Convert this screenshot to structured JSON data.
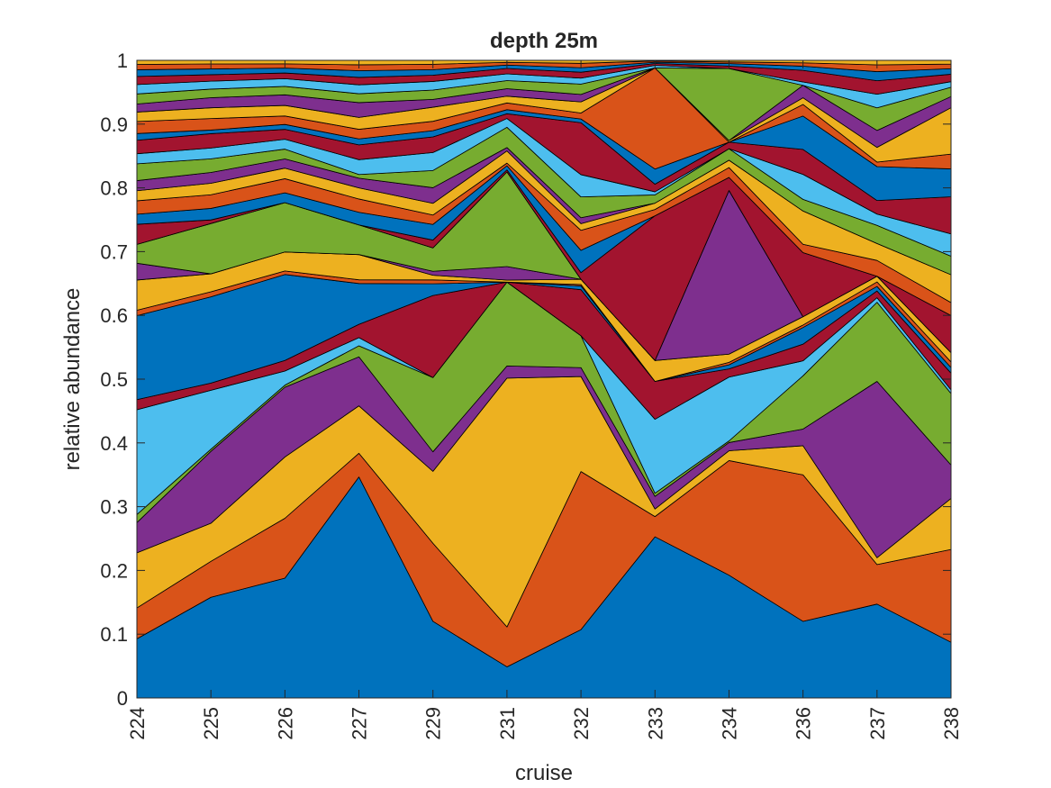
{
  "chart_data": {
    "type": "area",
    "title": "depth 25m",
    "xlabel": "cruise",
    "ylabel": "relative abundance",
    "ylim": [
      0,
      1
    ],
    "yticks": [
      "0",
      "0.1",
      "0.2",
      "0.3",
      "0.4",
      "0.5",
      "0.6",
      "0.7",
      "0.8",
      "0.9",
      "1"
    ],
    "categories": [
      "224",
      "225",
      "226",
      "227",
      "229",
      "231",
      "232",
      "233",
      "234",
      "236",
      "237",
      "238"
    ],
    "grid": false,
    "legend": "none",
    "stacked": true,
    "palette": [
      "#0072BD",
      "#D95319",
      "#EDB120",
      "#7E2F8E",
      "#77AC30",
      "#4DBEEE",
      "#A2142F"
    ],
    "series": [
      {
        "values": [
          0.088,
          0.14,
          0.17,
          0.298,
          0.098,
          0.046,
          0.092,
          0.255,
          0.15,
          0.092,
          0.083,
          0.06
        ]
      },
      {
        "values": [
          0.046,
          0.05,
          0.085,
          0.032,
          0.1,
          0.059,
          0.213,
          0.032,
          0.14,
          0.176,
          0.035,
          0.1
        ]
      },
      {
        "values": [
          0.082,
          0.053,
          0.087,
          0.064,
          0.092,
          0.368,
          0.128,
          0.012,
          0.012,
          0.035,
          0.006,
          0.055
        ]
      },
      {
        "values": [
          0.045,
          0.1,
          0.099,
          0.066,
          0.025,
          0.018,
          0.012,
          0.02,
          0.01,
          0.02,
          0.156,
          0.036
        ]
      },
      {
        "values": [
          0.012,
          0.003,
          0.003,
          0.015,
          0.095,
          0.124,
          0.043,
          0.005,
          0.002,
          0.064,
          0.07,
          0.077
        ]
      },
      {
        "values": [
          0.156,
          0.082,
          0.02,
          0.011,
          0.0,
          0.0,
          0.0,
          0.117,
          0.078,
          0.018,
          0.004,
          0.004
        ]
      },
      {
        "values": [
          0.015,
          0.01,
          0.015,
          0.018,
          0.105,
          0.0,
          0.062,
          0.06,
          0.01,
          0.02,
          0.006,
          0.018
        ]
      },
      {
        "values": [
          0.125,
          0.12,
          0.122,
          0.055,
          0.015,
          0.0,
          0.005,
          0.0,
          0.005,
          0.02,
          0.004,
          0.006
        ]
      },
      {
        "values": [
          0.008,
          0.007,
          0.005,
          0.005,
          0.005,
          0.0,
          0.002,
          0.0,
          0.003,
          0.003,
          0.004,
          0.006
        ]
      },
      {
        "values": [
          0.045,
          0.025,
          0.027,
          0.034,
          0.006,
          0.003,
          0.007,
          0.033,
          0.01,
          0.01,
          0.005,
          0.01
        ]
      },
      {
        "values": [
          0.025,
          0.0,
          0.0,
          0.0,
          0.005,
          0.02,
          0.0,
          0.0,
          0.2,
          0.0,
          0.0,
          0.0
        ]
      },
      {
        "values": [
          0.028,
          0.07,
          0.07,
          0.04,
          0.03,
          0.14,
          0.0,
          0.0,
          0.0,
          0.0,
          0.0,
          0.0
        ]
      },
      {
        "values": [
          0.0,
          0.0,
          0.0,
          0.0,
          0.0,
          0.0,
          0.0,
          0.0,
          0.0,
          0.0,
          0.0,
          0.0
        ]
      },
      {
        "values": [
          0.03,
          0.005,
          0.0,
          0.0,
          0.01,
          0.003,
          0.009,
          0.229,
          0.016,
          0.077,
          0.0,
          0.04
        ]
      },
      {
        "values": [
          0.015,
          0.016,
          0.014,
          0.017,
          0.02,
          0.006,
          0.03,
          0.0,
          0.0,
          0.0,
          0.0,
          0.0
        ]
      },
      {
        "values": [
          0.02,
          0.019,
          0.02,
          0.018,
          0.012,
          0.004,
          0.027,
          0.01,
          0.012,
          0.01,
          0.014,
          0.014
        ]
      },
      {
        "values": [
          0.015,
          0.016,
          0.015,
          0.015,
          0.015,
          0.018,
          0.009,
          0.01,
          0.009,
          0.04,
          0.015,
          0.03
        ]
      },
      {
        "values": [
          0.015,
          0.015,
          0.013,
          0.013,
          0.02,
          0.005,
          0.008,
          0.0,
          0.0,
          0.0,
          0.0,
          0.0
        ]
      },
      {
        "values": [
          0.025,
          0.019,
          0.014,
          0.005,
          0.022,
          0.03,
          0.028,
          0.013,
          0.014,
          0.014,
          0.016,
          0.02
        ]
      },
      {
        "values": [
          0.015,
          0.015,
          0.014,
          0.02,
          0.023,
          0.013,
          0.03,
          0.005,
          0.0,
          0.03,
          0.01,
          0.024
        ]
      },
      {
        "values": [
          0.02,
          0.02,
          0.014,
          0.02,
          0.02,
          0.007,
          0.07,
          0.012,
          0.008,
          0.03,
          0.012,
          0.04
        ]
      },
      {
        "values": [
          0.01,
          0.005,
          0.007,
          0.008,
          0.008,
          0.006,
          0.005,
          0.024,
          0.0,
          0.04,
          0.03,
          0.03
        ]
      },
      {
        "values": [
          0.018,
          0.016,
          0.012,
          0.013,
          0.012,
          0.01,
          0.008,
          0.16,
          0.0,
          0.014,
          0.004,
          0.016
        ]
      },
      {
        "values": [
          0.014,
          0.015,
          0.015,
          0.016,
          0.018,
          0.01,
          0.015,
          0.0,
          0.002,
          0.008,
          0.013,
          0.05
        ]
      },
      {
        "values": [
          0.012,
          0.014,
          0.015,
          0.02,
          0.01,
          0.011,
          0.01,
          0.0,
          0.0,
          0.015,
          0.015,
          0.012
        ]
      },
      {
        "values": [
          0.015,
          0.012,
          0.012,
          0.012,
          0.012,
          0.012,
          0.014,
          0.0,
          0.088,
          0.0,
          0.02,
          0.01
        ]
      },
      {
        "values": [
          0.014,
          0.011,
          0.011,
          0.012,
          0.011,
          0.01,
          0.008,
          0.004,
          0.0,
          0.004,
          0.012,
          0.006
        ]
      },
      {
        "values": [
          0.012,
          0.009,
          0.008,
          0.01,
          0.008,
          0.008,
          0.008,
          0.003,
          0.003,
          0.014,
          0.012,
          0.008
        ]
      },
      {
        "values": [
          0.01,
          0.008,
          0.007,
          0.009,
          0.007,
          0.005,
          0.006,
          0.002,
          0.003,
          0.005,
          0.008,
          0.006
        ]
      },
      {
        "values": [
          0.008,
          0.007,
          0.006,
          0.008,
          0.007,
          0.004,
          0.006,
          0.002,
          0.002,
          0.004,
          0.006,
          0.005
        ]
      },
      {
        "values": [
          0.006,
          0.005,
          0.005,
          0.006,
          0.005,
          0.003,
          0.004,
          0.001,
          0.002,
          0.003,
          0.004,
          0.004
        ]
      }
    ]
  }
}
